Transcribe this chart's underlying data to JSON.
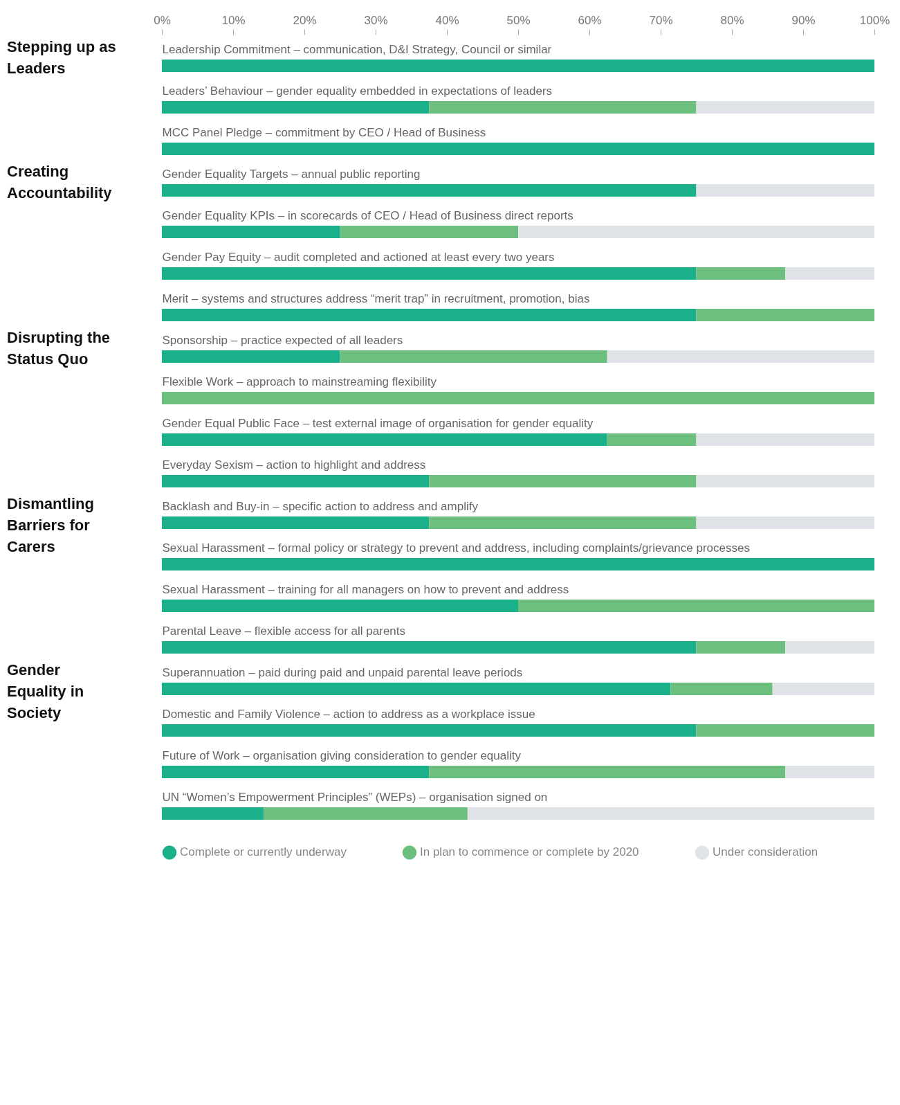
{
  "chart_data": {
    "type": "bar",
    "orientation": "horizontal",
    "stacked": true,
    "categories": [
      "Leadership Commitment – communication, D&I Strategy, Council or similar",
      "Leaders’ Behaviour – gender equality embedded in expectations of leaders",
      "MCC Panel Pledge – commitment by CEO / Head of Business",
      "Gender Equality Targets – annual public reporting",
      "Gender Equality KPIs – in scorecards of CEO / Head of Business direct reports",
      "Gender Pay Equity – audit completed and actioned at least every two years",
      "Merit – systems and structures address “merit trap” in recruitment, promotion, bias",
      "Sponsorship – practice expected of all leaders",
      "Flexible Work – approach to mainstreaming flexibility",
      "Gender Equal Public Face – test external image of organisation for gender equality",
      "Everyday Sexism – action to highlight and address",
      "Backlash and Buy-in – specific action to address and amplify",
      "Sexual Harassment – formal policy or strategy to prevent and address, including complaints/grievance processes",
      "Sexual Harassment – training for all managers on how to prevent and address",
      "Parental Leave – flexible access for all parents",
      "Superannuation – paid during paid and unpaid parental leave periods",
      "Domestic and Family Violence – action to address as a workplace issue",
      "Future of Work – organisation giving consideration to gender equality",
      "UN “Women’s Empowerment Principles” (WEPs) – organisation signed on"
    ],
    "series": [
      {
        "name": "Complete or currently underway",
        "color": "#19b08a",
        "values": [
          100,
          37.5,
          100,
          75,
          25,
          75,
          75,
          25,
          0,
          62.5,
          37.5,
          37.5,
          100,
          50,
          75,
          71.4,
          75,
          37.5,
          14.3
        ]
      },
      {
        "name": "In plan to commence or complete by 2020",
        "color": "#6dbf7d",
        "values": [
          0,
          37.5,
          0,
          0,
          25,
          12.5,
          25,
          37.5,
          100,
          12.5,
          37.5,
          37.5,
          0,
          50,
          12.5,
          14.3,
          25,
          50,
          28.6
        ]
      },
      {
        "name": "Under consideration",
        "color": "#e0e3e7",
        "values": [
          0,
          25,
          0,
          25,
          50,
          12.5,
          0,
          37.5,
          0,
          25,
          25,
          25,
          0,
          0,
          12.5,
          14.3,
          0,
          12.5,
          57.1
        ]
      }
    ],
    "xlim": [
      0,
      100
    ],
    "xticks": [
      {
        "value": 0,
        "label": "0%"
      },
      {
        "value": 10,
        "label": "10%"
      },
      {
        "value": 20,
        "label": "20%"
      },
      {
        "value": 30,
        "label": "30%"
      },
      {
        "value": 40,
        "label": "40%"
      },
      {
        "value": 50,
        "label": "50%"
      },
      {
        "value": 60,
        "label": "60%"
      },
      {
        "value": 70,
        "label": "70%"
      },
      {
        "value": 80,
        "label": "80%"
      },
      {
        "value": 90,
        "label": "90%"
      },
      {
        "value": 100,
        "label": "100%"
      }
    ],
    "legend": "bottom",
    "annotations": [
      "Stepping up as Leaders",
      "Creating Accountability",
      "Disrupting the Status Quo",
      "Dismantling Barriers for Carers",
      "Gender Equality in Society"
    ]
  }
}
